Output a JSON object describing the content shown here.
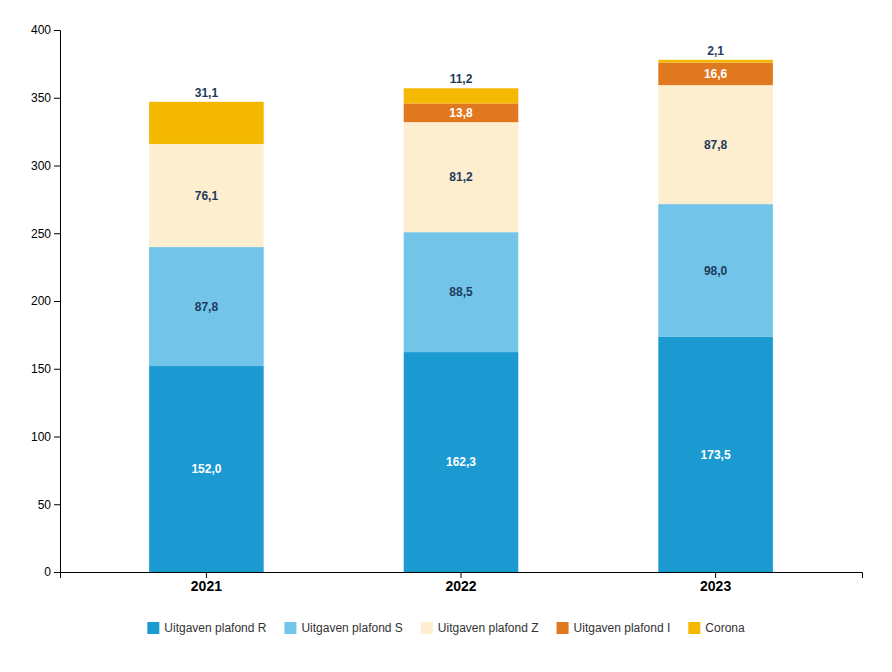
{
  "chart_data": {
    "type": "bar",
    "stacked": true,
    "data_labels": true,
    "grid": false,
    "legend": "bottom",
    "categories": [
      "2021",
      "2022",
      "2023"
    ],
    "series": [
      {
        "name": "Uitgaven plafond R",
        "color": "#1B9AD2",
        "values": [
          152.0,
          162.3,
          173.5
        ],
        "value_labels": [
          "152,0",
          "162,3",
          "173,5"
        ]
      },
      {
        "name": "Uitgaven plafond S",
        "color": "#72C4E8",
        "values": [
          87.8,
          88.5,
          98.0
        ],
        "value_labels": [
          "87,8",
          "88,5",
          "98,0"
        ]
      },
      {
        "name": "Uitgaven plafond Z",
        "color": "#FDEECF",
        "values": [
          76.1,
          81.2,
          87.8
        ],
        "value_labels": [
          "76,1",
          "81,2",
          "87,8"
        ]
      },
      {
        "name": "Uitgaven plafond I",
        "color": "#E07820",
        "values": [
          0.0,
          13.8,
          16.6
        ],
        "value_labels": [
          null,
          "13,8",
          "16,6"
        ]
      },
      {
        "name": "Corona",
        "color": "#F5B800",
        "values": [
          31.1,
          11.2,
          2.1
        ],
        "value_labels": [
          "31,1",
          "11,2",
          "2,1"
        ]
      }
    ],
    "ylim": [
      0,
      400
    ],
    "yticks": [
      0,
      50,
      100,
      150,
      200,
      250,
      300,
      350,
      400
    ]
  }
}
